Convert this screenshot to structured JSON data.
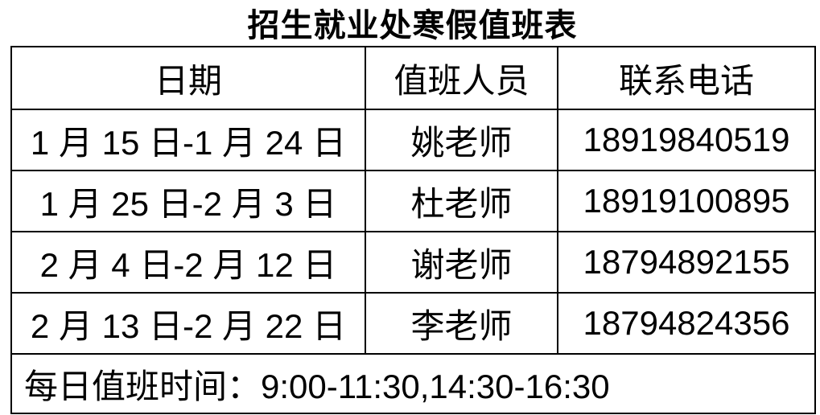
{
  "title": "招生就业处寒假值班表",
  "table": {
    "headers": [
      "日期",
      "值班人员",
      "联系电话"
    ],
    "rows": [
      {
        "date": "1 月 15 日-1 月 24 日",
        "person": "姚老师",
        "phone": "18919840519"
      },
      {
        "date": "1 月 25 日-2 月 3 日",
        "person": "杜老师",
        "phone": "18919100895"
      },
      {
        "date": "2 月 4 日-2 月 12 日",
        "person": "谢老师",
        "phone": "18794892155"
      },
      {
        "date": "2 月 13 日-2 月 22 日",
        "person": "李老师",
        "phone": "18794824356"
      }
    ],
    "footer_note": "每日值班时间：9:00-11:30,14:30-16:30"
  },
  "colors": {
    "text": "#000000",
    "border": "#000000",
    "background": "#ffffff"
  }
}
